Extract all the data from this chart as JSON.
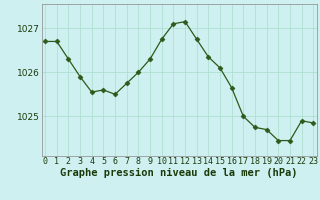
{
  "hours": [
    0,
    1,
    2,
    3,
    4,
    5,
    6,
    7,
    8,
    9,
    10,
    11,
    12,
    13,
    14,
    15,
    16,
    17,
    18,
    19,
    20,
    21,
    22,
    23
  ],
  "pressure": [
    1026.7,
    1026.7,
    1026.3,
    1025.9,
    1025.55,
    1025.6,
    1025.5,
    1025.75,
    1026.0,
    1026.3,
    1026.75,
    1027.1,
    1027.15,
    1026.75,
    1026.35,
    1026.1,
    1025.65,
    1025.0,
    1024.75,
    1024.7,
    1024.45,
    1024.45,
    1024.9,
    1024.85
  ],
  "line_color": "#2d5a1b",
  "marker": "D",
  "marker_size": 2.5,
  "background_color": "#cff0f0",
  "grid_color": "#aaddcc",
  "xlabel": "Graphe pression niveau de la mer (hPa)",
  "xlabel_fontsize": 7.5,
  "tick_fontsize": 6,
  "ytick_fontsize": 6.5,
  "ylim": [
    1024.1,
    1027.55
  ],
  "yticks": [
    1025,
    1026,
    1027
  ],
  "fig_width": 3.2,
  "fig_height": 2.0,
  "dpi": 100
}
